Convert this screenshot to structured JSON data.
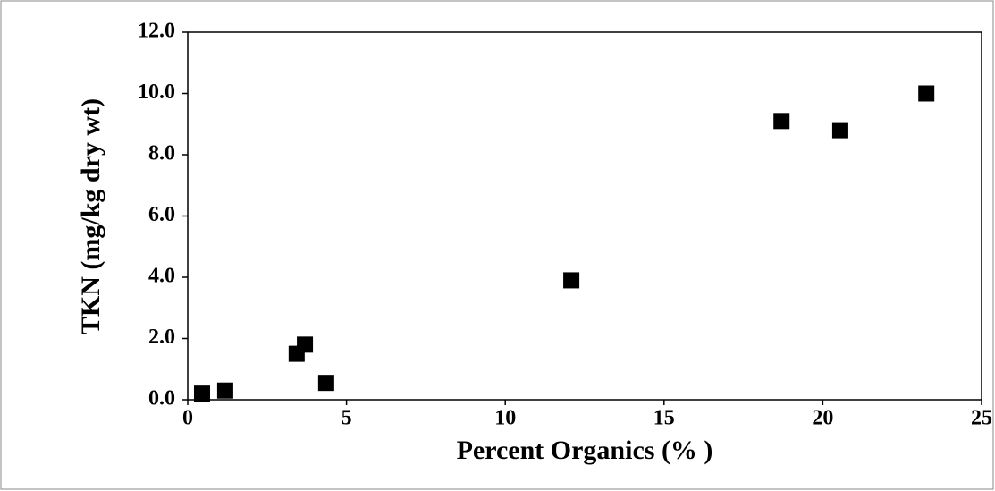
{
  "chart_data": {
    "type": "scatter",
    "x_label": "Percent Organics (% )",
    "y_label": "TKN (mg/kg dry wt)",
    "series": [
      {
        "color": "#000000",
        "x": [
          0.45,
          1.18,
          3.43,
          3.69,
          4.36,
          12.08,
          18.7,
          20.55,
          23.26
        ],
        "values": [
          0.2,
          0.3,
          1.5,
          1.8,
          0.55,
          3.9,
          9.1,
          8.8,
          10.0
        ]
      }
    ],
    "xlim": [
      0,
      25
    ],
    "xticks": [
      0,
      5,
      10,
      15,
      20,
      25
    ],
    "ylim": [
      0,
      12
    ],
    "yticks": [
      {
        "value": 0,
        "label": "0.0"
      },
      {
        "value": 2,
        "label": "2.0"
      },
      {
        "value": 4,
        "label": "4.0"
      },
      {
        "value": 6,
        "label": "6.0"
      },
      {
        "value": 8,
        "label": "8.0"
      },
      {
        "value": 10,
        "label": "10.0"
      },
      {
        "value": 12,
        "label": "12.0"
      }
    ],
    "grid": false
  }
}
